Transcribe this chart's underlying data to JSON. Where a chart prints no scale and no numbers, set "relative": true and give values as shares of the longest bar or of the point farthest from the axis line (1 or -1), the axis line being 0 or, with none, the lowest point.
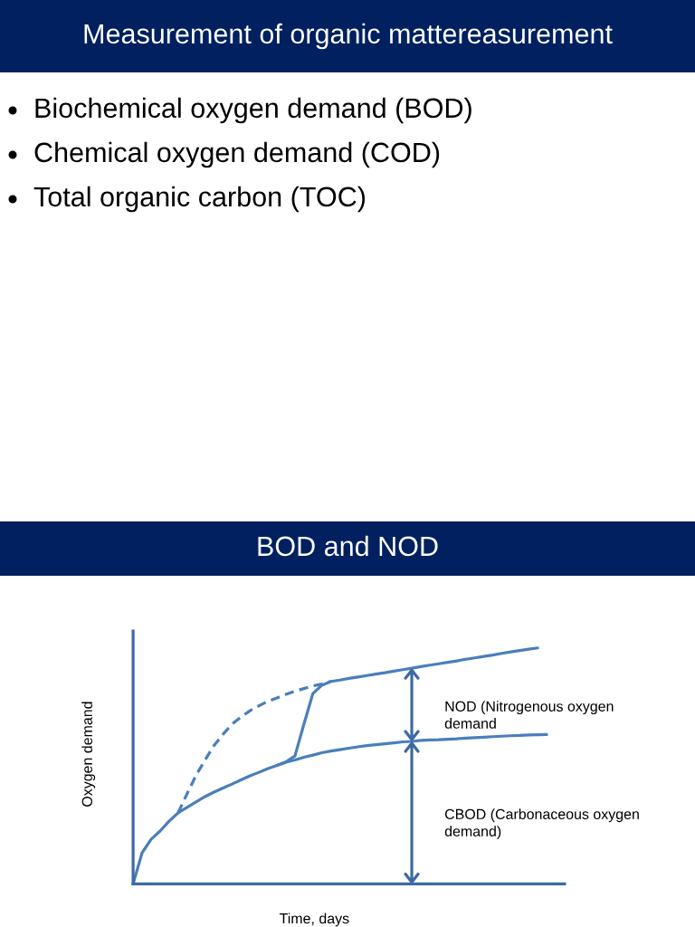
{
  "chart_data": [
    {
      "type": "other",
      "title": "Measurement of organic mattereasurement",
      "annotations": [
        "Biochemical oxygen demand (BOD)",
        "Chemical oxygen demand (COD)",
        "Total organic carbon (TOC)"
      ]
    },
    {
      "type": "line",
      "title": "BOD and NOD",
      "xlabel": "Time, days",
      "ylabel": "Oxygen demand",
      "relative": true,
      "line_style": "solid",
      "categories": [
        null,
        null,
        null,
        null,
        null,
        null,
        null,
        null,
        null,
        null,
        null,
        null,
        null,
        null,
        null,
        null,
        null,
        null,
        null,
        null,
        null,
        null,
        null,
        null,
        null,
        null,
        null,
        null,
        null,
        null,
        null,
        null,
        null,
        null,
        null,
        null,
        null,
        null,
        null,
        null,
        null,
        null,
        null,
        null,
        null,
        null,
        null,
        null,
        null
      ],
      "series": [
        {
          "color": "#4a7ebb",
          "values": [
            0,
            0.132,
            0.189,
            0.224,
            0.266,
            0.301,
            0.324,
            0.347,
            0.37,
            0.389,
            0.406,
            0.423,
            0.441,
            0.458,
            0.473,
            0.489,
            0.502,
            0.516,
            0.525,
            0.537,
            0.546,
            0.556,
            0.563,
            0.569,
            0.575,
            0.581,
            0.586,
            0.59,
            0.594,
            0.598,
            0.602,
            0.604,
            0.608,
            0.61,
            0.611,
            0.613,
            0.615,
            0.618,
            0.62,
            0.622,
            0.624,
            0.626,
            0.628,
            0.629,
            0.631,
            0.632,
            0.633,
            null,
            null
          ]
        },
        {
          "color": "#4a7ebb",
          "values": [
            null,
            null,
            null,
            null,
            null,
            null,
            null,
            null,
            null,
            null,
            null,
            null,
            null,
            null,
            null,
            null,
            0.502,
            0.517,
            0.542,
            0.677,
            0.807,
            0.842,
            0.858,
            0.864,
            0.871,
            0.877,
            0.883,
            0.889,
            0.895,
            0.902,
            0.908,
            0.914,
            0.921,
            0.927,
            0.933,
            0.939,
            0.945,
            0.952,
            0.958,
            0.964,
            0.97,
            0.977,
            0.983,
            0.989,
            0.995,
            1,
            null,
            null,
            null
          ]
        },
        {
          "color": "#4a7ebb",
          "line_style": "dashed",
          "values": [
            null,
            null,
            null,
            null,
            null,
            0.301,
            0.382,
            0.46,
            0.525,
            0.587,
            0.634,
            0.677,
            0.707,
            0.734,
            0.755,
            0.774,
            0.788,
            0.803,
            0.817,
            0.828,
            0.839,
            0.847,
            0.858,
            null,
            null,
            null,
            null,
            null,
            null,
            null,
            null,
            null,
            null,
            null,
            null,
            null,
            null,
            null,
            null,
            null,
            null,
            null,
            null,
            null,
            null,
            null,
            null,
            null,
            null
          ]
        }
      ],
      "annotations": [
        "NOD (Nitrogenous oxygen demand",
        "CBOD (Carbonaceous oxygen demand)"
      ]
    }
  ]
}
